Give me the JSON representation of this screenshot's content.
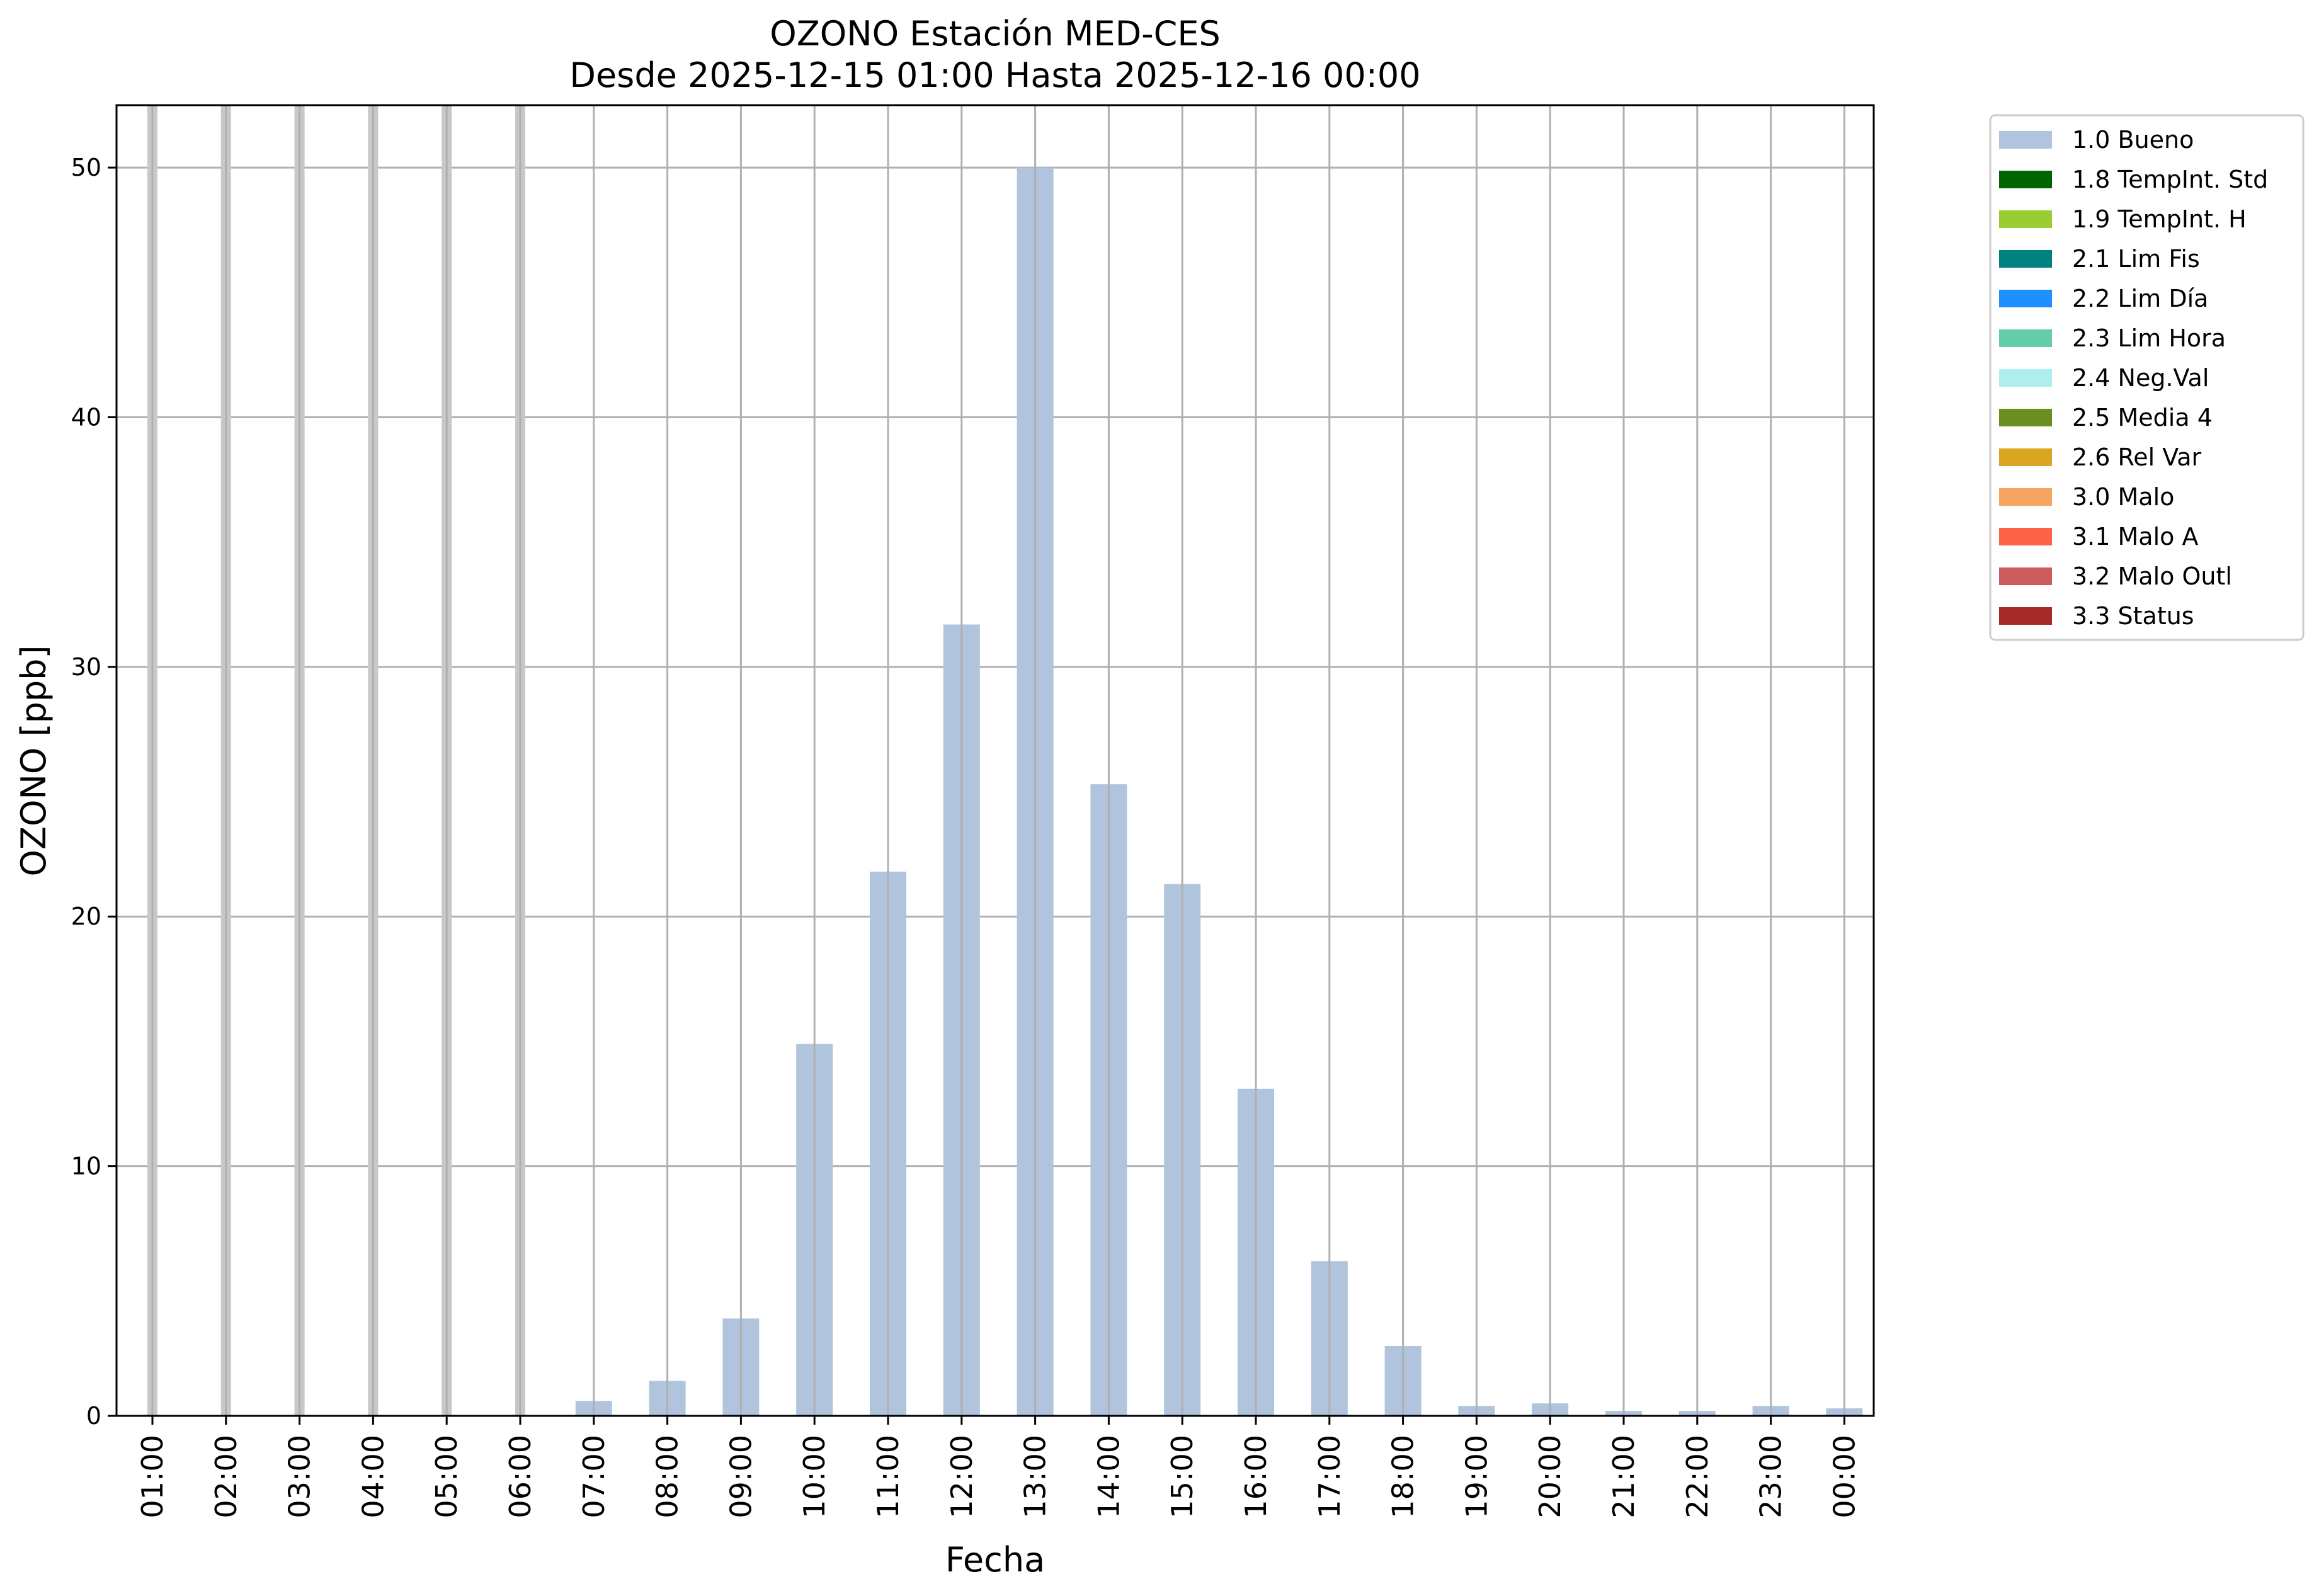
{
  "chart_data": {
    "type": "bar",
    "title": "OZONO Estación MED-CES",
    "subtitle": "Desde 2025-12-15 01:00 Hasta 2025-12-16 00:00",
    "xlabel": "Fecha",
    "ylabel": "OZONO [ppb]",
    "ylim": [
      0,
      52.5
    ],
    "yticks": [
      0,
      10,
      20,
      30,
      40,
      50
    ],
    "grid": true,
    "legend_position": "outside-right",
    "categories": [
      "01:00",
      "02:00",
      "03:00",
      "04:00",
      "05:00",
      "06:00",
      "07:00",
      "08:00",
      "09:00",
      "10:00",
      "11:00",
      "12:00",
      "13:00",
      "14:00",
      "15:00",
      "16:00",
      "17:00",
      "18:00",
      "19:00",
      "20:00",
      "21:00",
      "22:00",
      "23:00",
      "00:00"
    ],
    "series": [
      {
        "name": "1.0 Bueno",
        "color": "#b0c4de",
        "values": [
          null,
          null,
          null,
          null,
          null,
          null,
          0.6,
          1.4,
          3.9,
          14.9,
          21.8,
          31.7,
          50.0,
          25.3,
          21.3,
          13.1,
          6.2,
          2.8,
          0.4,
          0.5,
          0.2,
          0.2,
          0.4,
          0.3
        ]
      }
    ],
    "missing_marker_color": "#c8c8c8",
    "legend": [
      {
        "label": "1.0 Bueno",
        "color": "#b0c4de"
      },
      {
        "label": "1.8 TempInt. Std",
        "color": "#006400"
      },
      {
        "label": "1.9 TempInt. H",
        "color": "#9acd32"
      },
      {
        "label": "2.1 Lim Fis",
        "color": "#008080"
      },
      {
        "label": "2.2 Lim Día",
        "color": "#1e90ff"
      },
      {
        "label": "2.3 Lim Hora",
        "color": "#66cdaa"
      },
      {
        "label": "2.4 Neg.Val",
        "color": "#afeeee"
      },
      {
        "label": "2.5 Media 4",
        "color": "#6b8e23"
      },
      {
        "label": "2.6 Rel Var",
        "color": "#daa520"
      },
      {
        "label": "3.0 Malo",
        "color": "#f4a460"
      },
      {
        "label": "3.1 Malo A",
        "color": "#ff6347"
      },
      {
        "label": "3.2 Malo Outl",
        "color": "#cd5c5c"
      },
      {
        "label": "3.3 Status",
        "color": "#a52a2a"
      }
    ]
  }
}
